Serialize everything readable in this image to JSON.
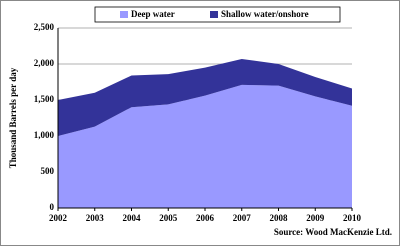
{
  "chart_data": {
    "type": "stacked_area",
    "x": [
      2002,
      2003,
      2004,
      2005,
      2006,
      2007,
      2008,
      2009,
      2010
    ],
    "xlim": [
      2002,
      2010
    ],
    "xticks": [
      2002,
      2003,
      2004,
      2005,
      2006,
      2007,
      2008,
      2009,
      2010
    ],
    "series": [
      {
        "name": "Deep water",
        "color": "#9999ff",
        "values": [
          1000,
          1130,
          1400,
          1440,
          1560,
          1710,
          1700,
          1550,
          1420
        ]
      },
      {
        "name": "Shallow water/onshore",
        "color": "#333399",
        "values": [
          500,
          470,
          440,
          420,
          390,
          360,
          300,
          270,
          240
        ]
      }
    ],
    "ylim": [
      0,
      2500
    ],
    "yticks": [
      0,
      500,
      {
        "value": 1000,
        "label": "1,000"
      },
      {
        "value": 1500,
        "label": "1,500"
      },
      {
        "value": 2000,
        "label": "2,000"
      },
      {
        "value": 2500,
        "label": "2,500"
      }
    ],
    "ylabel": "Thousand Barrels per day",
    "source": "Source: Wood MacKenzie Ltd.",
    "grid": true,
    "legend": "top"
  }
}
